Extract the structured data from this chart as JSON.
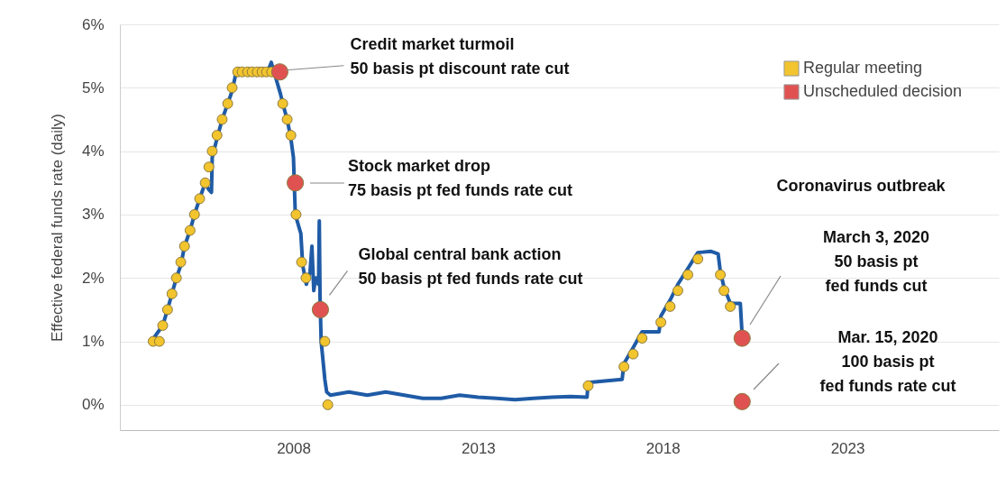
{
  "chart_data": {
    "type": "line",
    "ylabel": "Effective federal funds rate (daily)",
    "xlim": [
      2003.3,
      2027.1
    ],
    "xticks": [
      2008,
      2013,
      2018,
      2023
    ],
    "ylim": [
      -0.4,
      6
    ],
    "yticks": [
      {
        "value": 0,
        "label": "0%"
      },
      {
        "value": 1,
        "label": "1%"
      },
      {
        "value": 2,
        "label": "2%"
      },
      {
        "value": 3,
        "label": "3%"
      },
      {
        "value": 4,
        "label": "4%"
      },
      {
        "value": 5,
        "label": "5%"
      },
      {
        "value": 6,
        "label": "6%"
      }
    ],
    "grid": "y",
    "legend": "top right",
    "series": [
      {
        "color": "#1f5ba6",
        "x": [
          2004.15,
          2004.46,
          2004.59,
          2004.71,
          2004.83,
          2004.95,
          2005.05,
          2005.2,
          2005.32,
          2005.46,
          2005.61,
          2005.7,
          2005.78,
          2005.8,
          2005.93,
          2006.07,
          2006.22,
          2006.34,
          2006.45,
          2006.9,
          2007.0,
          2007.1,
          2007.3,
          2007.4,
          2007.65,
          2007.71,
          2007.83,
          2007.93,
          2008.0,
          2008.05,
          2008.2,
          2008.25,
          2008.35,
          2008.45,
          2008.5,
          2008.55,
          2008.6,
          2008.68,
          2008.7,
          2008.72,
          2008.75,
          2008.8,
          2008.85,
          2008.9,
          2009.0,
          2009.5,
          2010.0,
          2010.5,
          2011.0,
          2011.5,
          2012.0,
          2012.5,
          2013.0,
          2013.5,
          2014.0,
          2014.5,
          2015.0,
          2015.5,
          2015.95,
          2015.98,
          2016.5,
          2016.9,
          2016.95,
          2017.2,
          2017.44,
          2017.9,
          2017.95,
          2018.2,
          2018.41,
          2018.68,
          2018.95,
          2019.3,
          2019.5,
          2019.56,
          2019.66,
          2019.83,
          2020.0,
          2020.1,
          2020.15
        ],
        "values": [
          1.0,
          1.25,
          1.5,
          1.75,
          2.0,
          2.2,
          2.5,
          2.75,
          3.0,
          3.25,
          3.5,
          3.4,
          3.35,
          3.9,
          4.2,
          4.5,
          4.75,
          4.95,
          5.25,
          5.25,
          5.2,
          5.3,
          5.25,
          5.4,
          4.9,
          4.75,
          4.5,
          4.2,
          3.9,
          3.0,
          2.7,
          2.2,
          1.9,
          2.1,
          2.5,
          1.8,
          2.0,
          1.9,
          2.9,
          1.7,
          1.0,
          0.7,
          0.4,
          0.2,
          0.15,
          0.2,
          0.15,
          0.2,
          0.15,
          0.1,
          0.1,
          0.15,
          0.12,
          0.1,
          0.08,
          0.1,
          0.12,
          0.13,
          0.12,
          0.35,
          0.38,
          0.4,
          0.65,
          0.9,
          1.15,
          1.15,
          1.4,
          1.65,
          1.9,
          2.15,
          2.4,
          2.42,
          2.38,
          2.1,
          1.85,
          1.6,
          1.6,
          1.6,
          1.1
        ]
      },
      {
        "type": "scatter",
        "name": "Regular meeting",
        "color": "#f2c42e",
        "x": [
          2004.2,
          2004.37,
          2004.46,
          2004.59,
          2004.71,
          2004.83,
          2004.95,
          2005.05,
          2005.2,
          2005.32,
          2005.46,
          2005.61,
          2005.71,
          2005.8,
          2005.93,
          2006.07,
          2006.22,
          2006.34,
          2006.49,
          2006.61,
          2006.76,
          2006.88,
          2007.02,
          2007.15,
          2007.27,
          2007.41,
          2007.71,
          2007.83,
          2007.93,
          2008.07,
          2008.22,
          2008.34,
          2008.85,
          2008.93,
          2015.98,
          2016.95,
          2017.2,
          2017.44,
          2017.95,
          2018.2,
          2018.41,
          2018.68,
          2018.95,
          2019.56,
          2019.66,
          2019.83
        ],
        "values": [
          1.0,
          1.0,
          1.25,
          1.5,
          1.75,
          2.0,
          2.25,
          2.5,
          2.75,
          3.0,
          3.25,
          3.5,
          3.75,
          4.0,
          4.25,
          4.5,
          4.75,
          5.0,
          5.25,
          5.25,
          5.25,
          5.25,
          5.25,
          5.25,
          5.25,
          5.25,
          4.75,
          4.5,
          4.25,
          3.0,
          2.25,
          2.0,
          1.0,
          0.0,
          0.3,
          0.6,
          0.8,
          1.05,
          1.3,
          1.55,
          1.8,
          2.05,
          2.3,
          2.05,
          1.8,
          1.55
        ]
      },
      {
        "type": "scatter",
        "name": "Unscheduled decision",
        "color": "#e05252",
        "x": [
          2007.63,
          2008.05,
          2008.73,
          2020.15,
          2020.15
        ],
        "values": [
          5.25,
          3.5,
          1.5,
          1.05,
          0.05
        ]
      }
    ],
    "annotations": [
      {
        "text": "Credit market turmoil\n50 basis pt discount rate cut",
        "x": 2007.63,
        "y": 5.25
      },
      "Stock market drop\n75 basis pt fed funds rate cut",
      {
        "text": "Global central bank action\n50 basis pt fed funds rate cut",
        "x": 2008.73,
        "y": 1.5
      },
      "Coronavirus outbreak",
      "March 3, 2020\n50 basis pt\nfed funds cut",
      "Mar. 15, 2020\n100 basis pt\nfed funds rate cut"
    ]
  }
}
